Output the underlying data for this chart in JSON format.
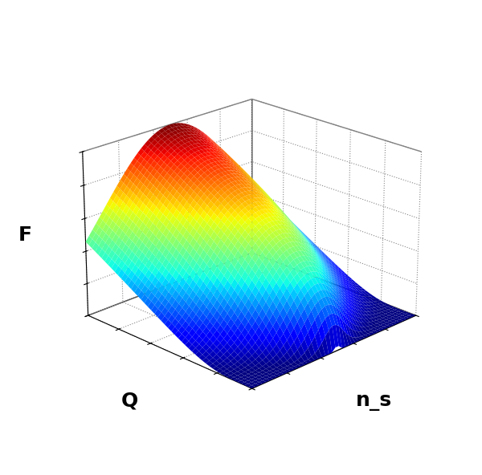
{
  "title": "",
  "xlabel": "n_s",
  "ylabel": "Q",
  "zlabel": "F",
  "Q_min": 0.0,
  "Q_max": 1.0,
  "ns_min": 0.0,
  "ns_max": 1.0,
  "n_points": 50,
  "colormap": "jet",
  "elev": 22,
  "azim": -135,
  "figsize": [
    6.0,
    5.92
  ],
  "dpi": 100,
  "xlabel_fontsize": 18,
  "ylabel_fontsize": 18,
  "zlabel_fontsize": 18,
  "xlabel_weight": "bold",
  "ylabel_weight": "bold",
  "zlabel_weight": "bold",
  "linewidth": 0.3,
  "antialiased": true,
  "background_color": "white"
}
